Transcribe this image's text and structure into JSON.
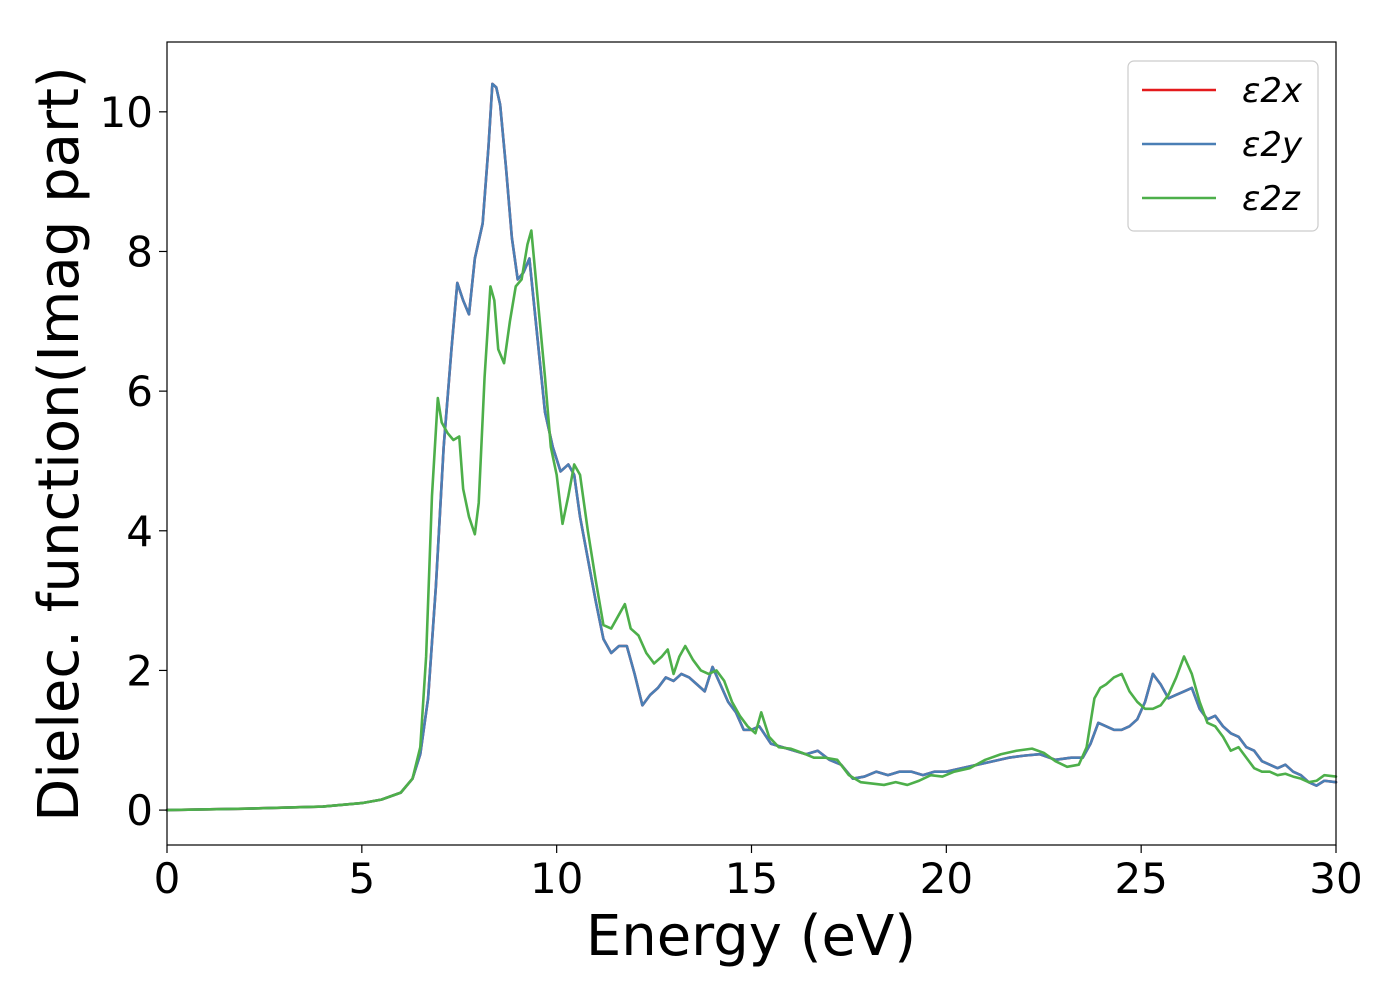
{
  "chart_data": {
    "type": "line",
    "title": "",
    "xlabel": "Energy (eV)",
    "ylabel": "Dielec. function(Imag part)",
    "xlim": [
      0,
      30
    ],
    "ylim": [
      -0.5,
      11
    ],
    "xticks": [
      "0",
      "5",
      "10",
      "15",
      "20",
      "25",
      "30"
    ],
    "yticks": [
      "0",
      "2",
      "4",
      "6",
      "8",
      "10"
    ],
    "grid": false,
    "legend_position": "top-right",
    "series": [
      {
        "name": "ε2x",
        "color": "#e41a1c",
        "x": [
          0,
          2,
          4,
          5,
          5.5,
          6.0,
          6.3,
          6.5,
          6.7,
          6.9,
          7.1,
          7.3,
          7.45,
          7.6,
          7.75,
          7.9,
          8.1,
          8.25,
          8.35,
          8.45,
          8.55,
          8.7,
          8.85,
          9.0,
          9.15,
          9.3,
          9.5,
          9.7,
          9.9,
          10.1,
          10.3,
          10.45,
          10.6,
          10.8,
          11.0,
          11.2,
          11.4,
          11.6,
          11.8,
          12.0,
          12.2,
          12.4,
          12.6,
          12.8,
          13.0,
          13.2,
          13.4,
          13.6,
          13.8,
          14.0,
          14.2,
          14.4,
          14.6,
          14.8,
          15.0,
          15.2,
          15.5,
          15.8,
          16.1,
          16.4,
          16.7,
          17.0,
          17.3,
          17.6,
          17.9,
          18.2,
          18.5,
          18.8,
          19.1,
          19.4,
          19.7,
          20.0,
          20.4,
          20.8,
          21.2,
          21.6,
          22.0,
          22.4,
          22.8,
          23.2,
          23.5,
          23.7,
          23.9,
          24.1,
          24.3,
          24.5,
          24.7,
          24.9,
          25.1,
          25.3,
          25.5,
          25.7,
          25.9,
          26.1,
          26.3,
          26.5,
          26.7,
          26.9,
          27.1,
          27.3,
          27.5,
          27.7,
          27.9,
          28.1,
          28.3,
          28.5,
          28.7,
          28.9,
          29.1,
          29.3,
          29.5,
          29.7,
          30.0
        ],
        "values": [
          0.0,
          0.02,
          0.05,
          0.1,
          0.15,
          0.25,
          0.45,
          0.8,
          1.6,
          3.2,
          5.2,
          6.6,
          7.55,
          7.3,
          7.1,
          7.9,
          8.4,
          9.5,
          10.4,
          10.35,
          10.1,
          9.2,
          8.2,
          7.6,
          7.7,
          7.9,
          6.8,
          5.7,
          5.2,
          4.85,
          4.95,
          4.8,
          4.2,
          3.6,
          3.0,
          2.45,
          2.25,
          2.35,
          2.35,
          1.95,
          1.5,
          1.65,
          1.75,
          1.9,
          1.85,
          1.95,
          1.9,
          1.8,
          1.7,
          2.05,
          1.8,
          1.55,
          1.4,
          1.15,
          1.15,
          1.2,
          0.95,
          0.9,
          0.85,
          0.8,
          0.85,
          0.72,
          0.65,
          0.45,
          0.48,
          0.55,
          0.5,
          0.55,
          0.55,
          0.5,
          0.55,
          0.55,
          0.6,
          0.65,
          0.7,
          0.75,
          0.78,
          0.8,
          0.72,
          0.75,
          0.75,
          0.95,
          1.25,
          1.2,
          1.15,
          1.15,
          1.2,
          1.3,
          1.55,
          1.95,
          1.8,
          1.6,
          1.65,
          1.7,
          1.75,
          1.45,
          1.3,
          1.35,
          1.2,
          1.1,
          1.05,
          0.9,
          0.85,
          0.7,
          0.65,
          0.6,
          0.65,
          0.55,
          0.5,
          0.4,
          0.35,
          0.42,
          0.4
        ]
      },
      {
        "name": "ε2y",
        "color": "#4a7fb5",
        "x": [
          0,
          2,
          4,
          5,
          5.5,
          6.0,
          6.3,
          6.5,
          6.7,
          6.9,
          7.1,
          7.3,
          7.45,
          7.6,
          7.75,
          7.9,
          8.1,
          8.25,
          8.35,
          8.45,
          8.55,
          8.7,
          8.85,
          9.0,
          9.15,
          9.3,
          9.5,
          9.7,
          9.9,
          10.1,
          10.3,
          10.45,
          10.6,
          10.8,
          11.0,
          11.2,
          11.4,
          11.6,
          11.8,
          12.0,
          12.2,
          12.4,
          12.6,
          12.8,
          13.0,
          13.2,
          13.4,
          13.6,
          13.8,
          14.0,
          14.2,
          14.4,
          14.6,
          14.8,
          15.0,
          15.2,
          15.5,
          15.8,
          16.1,
          16.4,
          16.7,
          17.0,
          17.3,
          17.6,
          17.9,
          18.2,
          18.5,
          18.8,
          19.1,
          19.4,
          19.7,
          20.0,
          20.4,
          20.8,
          21.2,
          21.6,
          22.0,
          22.4,
          22.8,
          23.2,
          23.5,
          23.7,
          23.9,
          24.1,
          24.3,
          24.5,
          24.7,
          24.9,
          25.1,
          25.3,
          25.5,
          25.7,
          25.9,
          26.1,
          26.3,
          26.5,
          26.7,
          26.9,
          27.1,
          27.3,
          27.5,
          27.7,
          27.9,
          28.1,
          28.3,
          28.5,
          28.7,
          28.9,
          29.1,
          29.3,
          29.5,
          29.7,
          30.0
        ],
        "values": [
          0.0,
          0.02,
          0.05,
          0.1,
          0.15,
          0.25,
          0.45,
          0.8,
          1.6,
          3.2,
          5.2,
          6.6,
          7.55,
          7.3,
          7.1,
          7.9,
          8.4,
          9.5,
          10.4,
          10.35,
          10.1,
          9.2,
          8.2,
          7.6,
          7.7,
          7.9,
          6.8,
          5.7,
          5.2,
          4.85,
          4.95,
          4.8,
          4.2,
          3.6,
          3.0,
          2.45,
          2.25,
          2.35,
          2.35,
          1.95,
          1.5,
          1.65,
          1.75,
          1.9,
          1.85,
          1.95,
          1.9,
          1.8,
          1.7,
          2.05,
          1.8,
          1.55,
          1.4,
          1.15,
          1.15,
          1.2,
          0.95,
          0.9,
          0.85,
          0.8,
          0.85,
          0.72,
          0.65,
          0.45,
          0.48,
          0.55,
          0.5,
          0.55,
          0.55,
          0.5,
          0.55,
          0.55,
          0.6,
          0.65,
          0.7,
          0.75,
          0.78,
          0.8,
          0.72,
          0.75,
          0.75,
          0.95,
          1.25,
          1.2,
          1.15,
          1.15,
          1.2,
          1.3,
          1.55,
          1.95,
          1.8,
          1.6,
          1.65,
          1.7,
          1.75,
          1.45,
          1.3,
          1.35,
          1.2,
          1.1,
          1.05,
          0.9,
          0.85,
          0.7,
          0.65,
          0.6,
          0.65,
          0.55,
          0.5,
          0.4,
          0.35,
          0.42,
          0.4
        ]
      },
      {
        "name": "ε2z",
        "color": "#4daf4a",
        "x": [
          0,
          2,
          4,
          5,
          5.5,
          6.0,
          6.3,
          6.5,
          6.65,
          6.8,
          6.95,
          7.05,
          7.2,
          7.35,
          7.5,
          7.6,
          7.75,
          7.9,
          8.0,
          8.15,
          8.3,
          8.4,
          8.5,
          8.65,
          8.8,
          8.95,
          9.1,
          9.25,
          9.35,
          9.5,
          9.7,
          9.85,
          10.0,
          10.15,
          10.3,
          10.45,
          10.6,
          10.8,
          11.0,
          11.2,
          11.4,
          11.6,
          11.75,
          11.9,
          12.1,
          12.3,
          12.5,
          12.7,
          12.85,
          13.0,
          13.15,
          13.3,
          13.5,
          13.7,
          13.9,
          14.1,
          14.3,
          14.5,
          14.7,
          14.9,
          15.1,
          15.25,
          15.45,
          15.7,
          16.0,
          16.3,
          16.6,
          16.9,
          17.2,
          17.5,
          17.8,
          18.1,
          18.4,
          18.7,
          19.0,
          19.3,
          19.6,
          19.9,
          20.2,
          20.6,
          21.0,
          21.4,
          21.8,
          22.2,
          22.5,
          22.8,
          23.1,
          23.4,
          23.6,
          23.8,
          23.95,
          24.1,
          24.3,
          24.5,
          24.7,
          24.9,
          25.1,
          25.3,
          25.5,
          25.7,
          25.9,
          26.1,
          26.3,
          26.5,
          26.7,
          26.9,
          27.1,
          27.3,
          27.5,
          27.7,
          27.9,
          28.1,
          28.3,
          28.5,
          28.7,
          28.9,
          29.1,
          29.3,
          29.5,
          29.7,
          30.0
        ],
        "values": [
          0.0,
          0.02,
          0.05,
          0.1,
          0.15,
          0.25,
          0.45,
          0.9,
          2.2,
          4.5,
          5.9,
          5.55,
          5.4,
          5.3,
          5.35,
          4.6,
          4.2,
          3.95,
          4.4,
          6.2,
          7.5,
          7.3,
          6.6,
          6.4,
          7.0,
          7.5,
          7.6,
          8.1,
          8.3,
          7.4,
          6.2,
          5.2,
          4.8,
          4.1,
          4.5,
          4.95,
          4.8,
          4.0,
          3.3,
          2.65,
          2.6,
          2.8,
          2.95,
          2.6,
          2.5,
          2.25,
          2.1,
          2.2,
          2.3,
          1.95,
          2.2,
          2.35,
          2.15,
          2.0,
          1.95,
          2.0,
          1.85,
          1.55,
          1.35,
          1.2,
          1.1,
          1.4,
          1.05,
          0.9,
          0.88,
          0.82,
          0.75,
          0.75,
          0.72,
          0.5,
          0.4,
          0.38,
          0.36,
          0.4,
          0.36,
          0.42,
          0.5,
          0.48,
          0.55,
          0.6,
          0.72,
          0.8,
          0.85,
          0.88,
          0.82,
          0.7,
          0.62,
          0.65,
          0.9,
          1.6,
          1.75,
          1.8,
          1.9,
          1.95,
          1.7,
          1.55,
          1.45,
          1.45,
          1.5,
          1.65,
          1.9,
          2.2,
          1.95,
          1.55,
          1.25,
          1.2,
          1.05,
          0.85,
          0.9,
          0.75,
          0.6,
          0.55,
          0.55,
          0.5,
          0.52,
          0.48,
          0.45,
          0.4,
          0.42,
          0.5,
          0.48
        ]
      }
    ]
  }
}
